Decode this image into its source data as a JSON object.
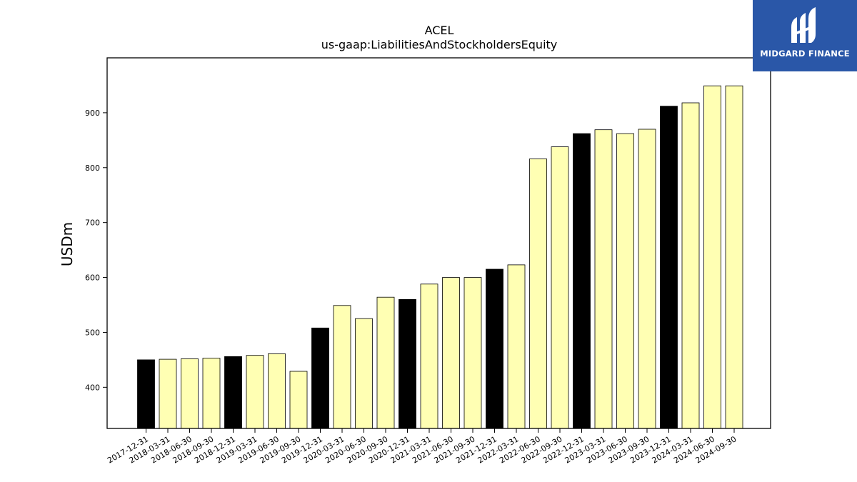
{
  "chart_data": {
    "type": "bar",
    "title": "ACEL",
    "subtitle": "us-gaap:LiabilitiesAndStockholdersEquity",
    "xlabel": "",
    "ylabel": "USDm",
    "ylim": [
      325,
      1000
    ],
    "yticks": [
      400,
      500,
      600,
      700,
      800,
      900
    ],
    "grid": false,
    "colors": {
      "year_end": "#000000",
      "quarter": "#ffffb3",
      "edge": "#000000"
    },
    "categories": [
      "2017-12-31",
      "2018-03-31",
      "2018-06-30",
      "2018-09-30",
      "2018-12-31",
      "2019-03-31",
      "2019-06-30",
      "2019-09-30",
      "2019-12-31",
      "2020-03-31",
      "2020-06-30",
      "2020-09-30",
      "2020-12-31",
      "2021-03-31",
      "2021-06-30",
      "2021-09-30",
      "2021-12-31",
      "2022-03-31",
      "2022-06-30",
      "2022-09-30",
      "2022-12-31",
      "2023-03-31",
      "2023-06-30",
      "2023-09-30",
      "2023-12-31",
      "2024-03-31",
      "2024-06-30",
      "2024-09-30"
    ],
    "values": [
      450,
      451,
      452,
      453,
      456,
      458,
      461,
      429,
      508,
      549,
      525,
      564,
      560,
      588,
      600,
      600,
      615,
      623,
      816,
      838,
      862,
      869,
      862,
      870,
      912,
      918,
      949,
      949
    ],
    "highlight": [
      true,
      false,
      false,
      false,
      true,
      false,
      false,
      false,
      true,
      false,
      false,
      false,
      true,
      false,
      false,
      false,
      true,
      false,
      false,
      false,
      true,
      false,
      false,
      false,
      true,
      false,
      false,
      false
    ]
  },
  "logo": {
    "text": "MIDGARD FINANCE",
    "icon": "midgard-logo-icon",
    "background": "#2a57a8"
  }
}
